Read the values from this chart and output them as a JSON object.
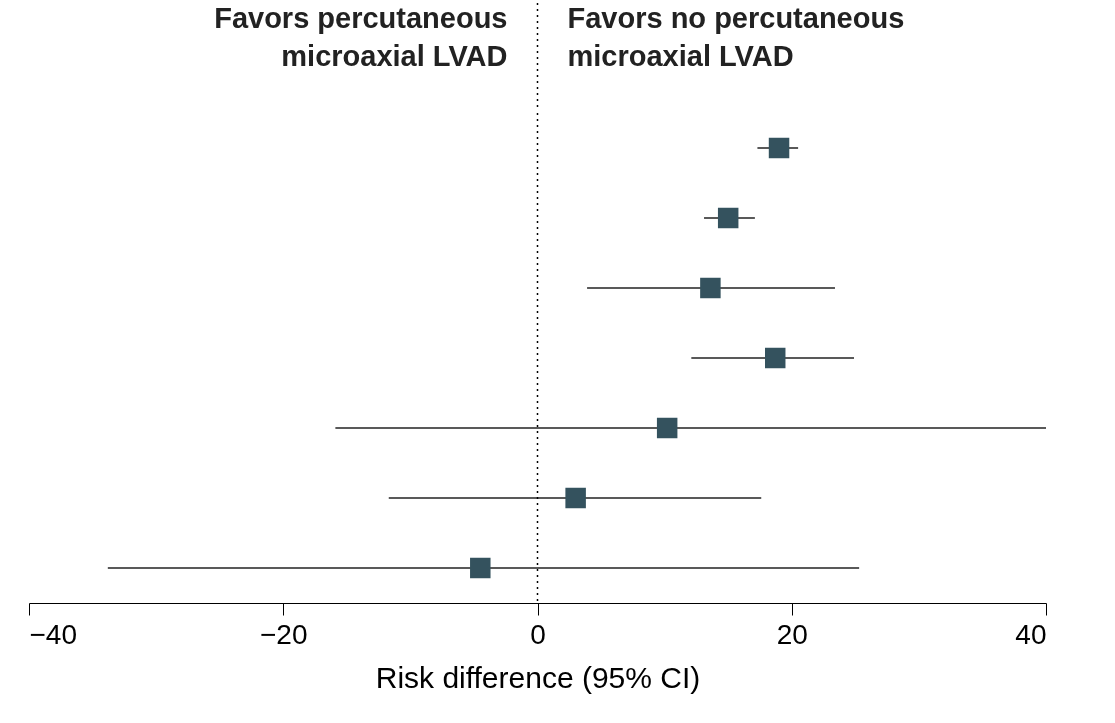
{
  "chart_data": {
    "type": "scatter",
    "orientation": "horizontal",
    "xlabel": "Risk difference (95% CI)",
    "categories": [
      null,
      null,
      null,
      null,
      null,
      null,
      null
    ],
    "series": [
      {
        "color": "#34525e",
        "values": [
          19.0,
          15.0,
          13.6,
          18.7,
          10.2,
          3.0,
          -4.5
        ],
        "errors": [
          [
            17.3,
            20.5
          ],
          [
            13.1,
            17.1
          ],
          [
            3.9,
            23.4
          ],
          [
            12.1,
            24.9
          ],
          [
            -15.9,
            40
          ],
          [
            -11.7,
            17.6
          ],
          [
            -33.8,
            25.3
          ]
        ]
      }
    ],
    "xlim": [
      -40,
      40
    ],
    "xticks": [
      -40,
      -20,
      0,
      20,
      40
    ],
    "tick_labels": "x",
    "grid": false,
    "marker": "square",
    "ref_lines": [
      {
        "axis": "x",
        "value": 0,
        "line_style": "dotted",
        "color": "#000000"
      }
    ],
    "annotations": [
      "Favors percutaneous\nmicroaxial LVAD",
      "Favors no percutaneous\nmicroaxial LVAD"
    ]
  }
}
